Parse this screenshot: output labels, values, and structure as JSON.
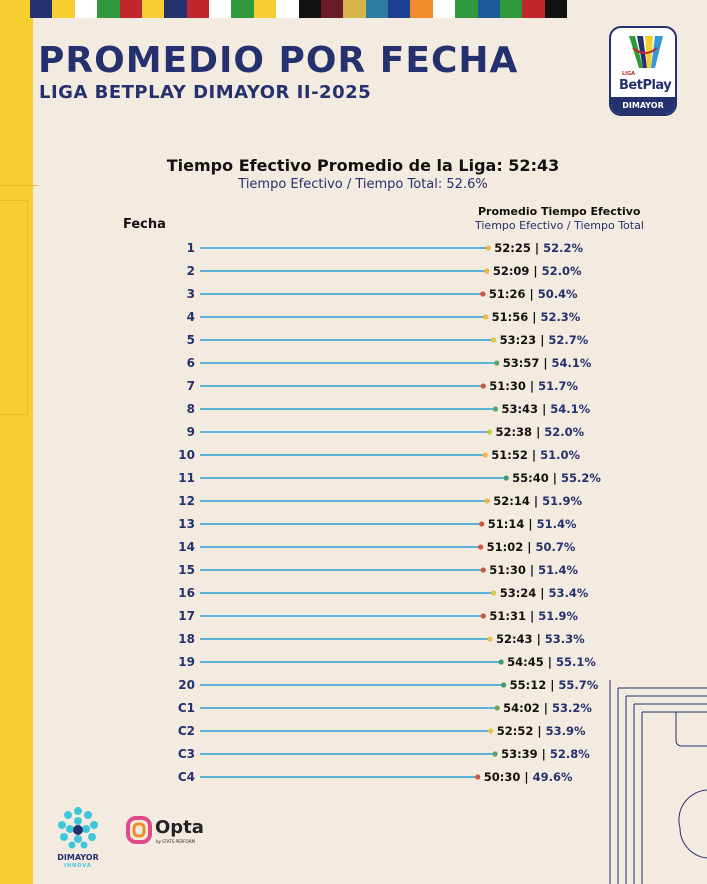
{
  "header": {
    "title": "PROMEDIO POR FECHA",
    "subtitle": "LIGA BETPLAY DIMAYOR II-2025"
  },
  "logo": {
    "small_text": "LIGA",
    "name": "BetPlay",
    "band": "DIMAYOR"
  },
  "colors": {
    "navy": "#25306e",
    "accent_yellow": "#f7ce2f",
    "background": "#f4ebe0",
    "bar_line": "#2a9fd6",
    "value_blue": "#25306e",
    "strip": [
      "#25306e",
      "#f7ce2f",
      "#ffffff",
      "#2f9a3c",
      "#c1272d",
      "#f7ce2f",
      "#25306e",
      "#c1272d",
      "#ffffff",
      "#2f9a3c",
      "#f7ce2f",
      "#ffffff",
      "#111111",
      "#6b1a2a",
      "#d6b44c",
      "#2f7da0",
      "#1d3f8f",
      "#f28c28",
      "#ffffff",
      "#2f9a3c",
      "#1d5a9c",
      "#2f9a3c",
      "#c1272d",
      "#111111"
    ]
  },
  "chart_data": {
    "type": "bar",
    "title": "Tiempo Efectivo Promedio de la Liga: 52:43",
    "subtitle": "Tiempo Efectivo / Tiempo Total: 52.6%",
    "ylabel": "Fecha",
    "legend_title": "Promedio Tiempo Efectivo",
    "legend_subtitle": "Tiempo Efectivo / Tiempo Total",
    "xlim": [
      0,
      56
    ],
    "categories": [
      "1",
      "2",
      "3",
      "4",
      "5",
      "6",
      "7",
      "8",
      "9",
      "10",
      "11",
      "12",
      "13",
      "14",
      "15",
      "16",
      "17",
      "18",
      "19",
      "20",
      "C1",
      "C2",
      "C3",
      "C4"
    ],
    "time_labels": [
      "52:25",
      "52:09",
      "51:26",
      "51:56",
      "53:23",
      "53:57",
      "51:30",
      "53:43",
      "52:38",
      "51:52",
      "55:40",
      "52:14",
      "51:14",
      "51:02",
      "51:30",
      "53:24",
      "51:31",
      "52:43",
      "54:45",
      "55:12",
      "54:02",
      "52:52",
      "53:39",
      "50:30"
    ],
    "percent_labels": [
      "52.2%",
      "52.0%",
      "50.4%",
      "52.3%",
      "52.7%",
      "54.1%",
      "51.7%",
      "54.1%",
      "52.0%",
      "51.0%",
      "55.2%",
      "51.9%",
      "51.4%",
      "50.7%",
      "51.4%",
      "53.4%",
      "51.9%",
      "53.3%",
      "55.1%",
      "55.7%",
      "53.2%",
      "53.9%",
      "52.8%",
      "49.6%"
    ],
    "values": [
      52.42,
      52.15,
      51.43,
      51.93,
      53.38,
      53.95,
      51.5,
      53.72,
      52.63,
      51.87,
      55.67,
      52.23,
      51.23,
      51.03,
      51.5,
      53.4,
      51.52,
      52.72,
      54.75,
      55.2,
      54.03,
      52.87,
      53.65,
      50.5
    ],
    "dot_colors": [
      "#f0b73c",
      "#f0b73c",
      "#d4553a",
      "#f0b73c",
      "#e4c445",
      "#5aa56b",
      "#d4553a",
      "#5aa56b",
      "#c8c84a",
      "#f0b73c",
      "#3e9b6b",
      "#f0b73c",
      "#d4553a",
      "#d4553a",
      "#d4553a",
      "#e4c445",
      "#d4553a",
      "#e4c445",
      "#3e9b6b",
      "#3e9b6b",
      "#7a9f55",
      "#e4c445",
      "#5aa56b",
      "#d4553a"
    ]
  },
  "footer": {
    "dimayor_name": "DIMAYOR",
    "dimayor_sub": "INNOVA",
    "opta_name": "Opta",
    "opta_sub": "by STATS PERFORM"
  }
}
